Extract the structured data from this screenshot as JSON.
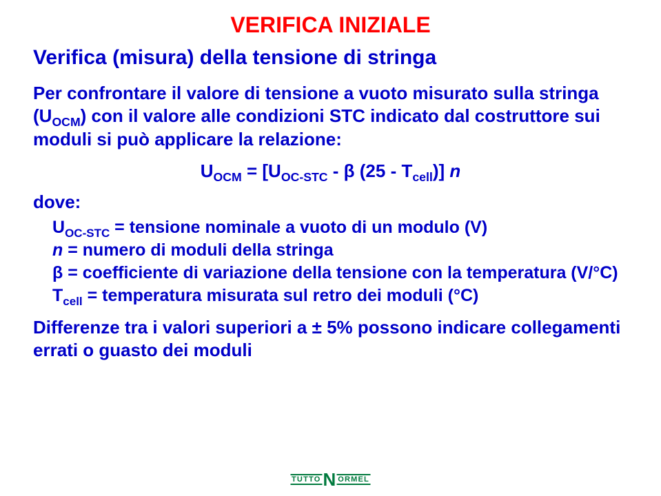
{
  "title": "VERIFICA INIZIALE",
  "subtitle": "Verifica (misura) della tensione di stringa",
  "intro_pre": "Per confrontare il valore di tensione a vuoto misurato sulla stringa (U",
  "intro_sub1": "OCM",
  "intro_post": ") con il valore alle condizioni STC indicato dal costruttore sui moduli si può applicare la relazione:",
  "formula": {
    "lhs_u": "U",
    "lhs_sub": "OCM",
    "eq": " = [U",
    "rhs_sub1": "OC-STC",
    "mid": " - β (25 - T",
    "rhs_sub2": "cell",
    "tail": ")] ",
    "n": "n"
  },
  "where": "dove:",
  "defs": {
    "d1_pre": "U",
    "d1_sub": "OC-STC",
    "d1_post": " = tensione nominale a vuoto di un modulo (V)",
    "d2_pre": "n",
    "d2_post": " = numero di moduli della stringa",
    "d3": "β = coefficiente di variazione della tensione con la temperatura (V/°C)",
    "d4_pre": "T",
    "d4_sub": "cell",
    "d4_post": " = temperatura misurata sul retro dei moduli (°C)"
  },
  "closing": "Differenze tra i valori superiori a ± 5% possono  indicare collegamenti errati o guasto dei moduli",
  "logo": {
    "left": "TUTTO",
    "n": "N",
    "right": "ORMEL"
  }
}
